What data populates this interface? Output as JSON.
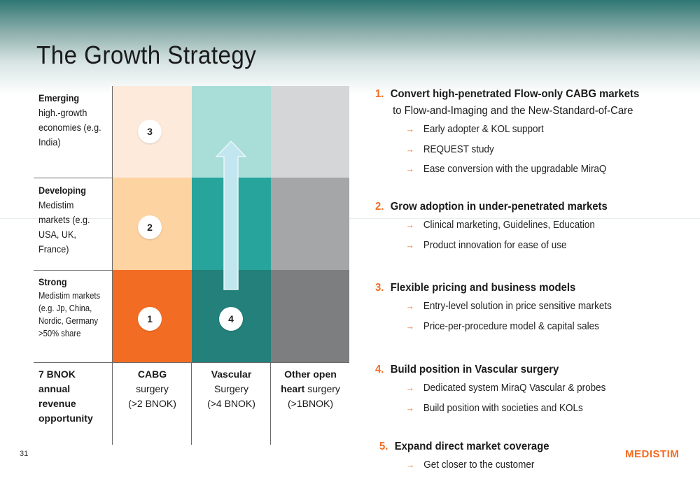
{
  "title": "The Growth Strategy",
  "page_number": "31",
  "logo_text": "MEDISTIM",
  "colors": {
    "accent": "#f26d23",
    "orange_strong": "#f26d23",
    "orange_mid": "#fdd3a2",
    "orange_light": "#fdeadb",
    "teal_strong": "#23807a",
    "teal_mid": "#27a49c",
    "teal_light": "#a8ddd8",
    "gray_strong": "#7d7e80",
    "gray_mid": "#a5a6a8",
    "gray_light": "#d5d6d8"
  },
  "matrix": {
    "rows": [
      {
        "title": "Emerging",
        "body": "high.-growth economies (e.g. India)"
      },
      {
        "title": "Developing",
        "body": "Medistim markets (e.g. USA, UK, France)"
      },
      {
        "title": "Strong",
        "body": "Medistim markets (e.g. Jp, China, Nordic, Germany >50% share"
      }
    ],
    "bottom_left": "7 BNOK annual revenue opportunity",
    "columns": [
      {
        "bold": "CABG",
        "line2": "surgery",
        "line3": "(>2 BNOK)"
      },
      {
        "bold": "Vascular",
        "line2": "Surgery",
        "line3": "(>4 BNOK)"
      },
      {
        "bold": "Other open",
        "bold2": "heart",
        "line2": " surgery",
        "line3": "(>1BNOK)"
      }
    ],
    "markers": [
      "3",
      "2",
      "1",
      "4"
    ],
    "arrow_icon": "up-arrow-icon"
  },
  "strategies": [
    {
      "num": "1.",
      "title": "Convert high-penetrated Flow-only CABG markets",
      "subtitle": "to Flow-and-Imaging and the New-Standard-of-Care",
      "points": [
        "Early adopter & KOL support",
        "REQUEST study",
        "Ease conversion with the upgradable MiraQ"
      ]
    },
    {
      "num": "2.",
      "title": "Grow adoption in under-penetrated markets",
      "points": [
        "Clinical marketing, Guidelines, Education",
        "Product innovation for ease of use"
      ]
    },
    {
      "num": "3.",
      "title": "Flexible pricing and business models",
      "points": [
        "Entry-level solution in price sensitive markets",
        "Price-per-procedure model & capital sales"
      ]
    },
    {
      "num": "4.",
      "title": "Build position in Vascular surgery",
      "points": [
        "Dedicated system MiraQ Vascular & probes",
        "Build position with societies and KOLs"
      ]
    },
    {
      "num": "5.",
      "title": "Expand direct market coverage",
      "points": [
        "Get closer to the customer"
      ]
    }
  ],
  "arrow_glyph": "→"
}
